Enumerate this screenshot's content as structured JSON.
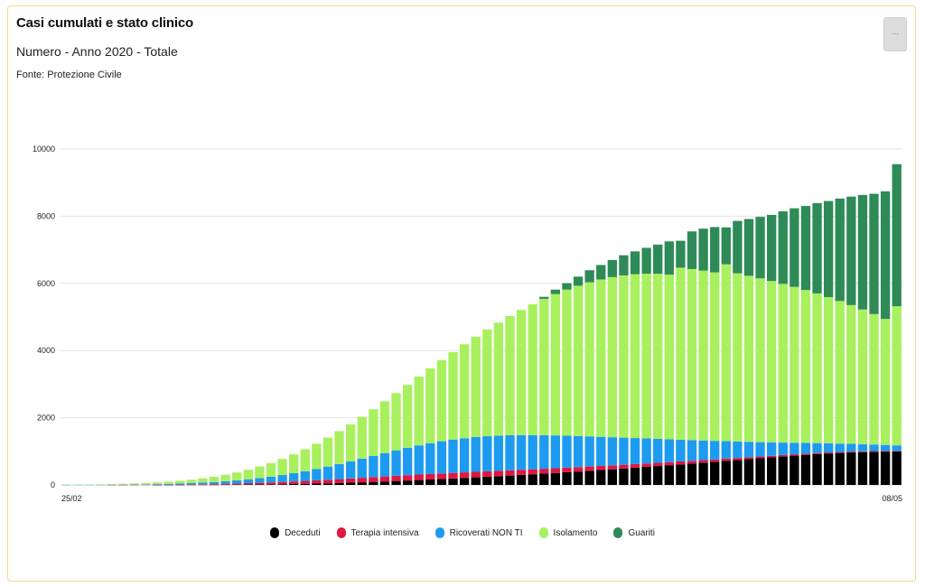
{
  "header": {
    "title": "Casi cumulati e stato clinico",
    "subtitle": "Numero - Anno 2020 - Totale",
    "source": "Fonte: Protezione Civile",
    "menu_label": "..."
  },
  "colors": {
    "Deceduti": "#000000",
    "Terapia intensiva": "#e0173f",
    "Ricoverati NON TI": "#1d9bf0",
    "Isolamento": "#a8f05e",
    "Guariti": "#2e8b57",
    "grid": "#e2e2e2"
  },
  "chart_data": {
    "type": "bar",
    "stacked": true,
    "title": "Casi cumulati e stato clinico",
    "subtitle": "Numero - Anno 2020 - Totale",
    "ylim": [
      0,
      10000
    ],
    "yticks": [
      "0",
      "2000",
      "4000",
      "6000",
      "8000",
      "10000"
    ],
    "x_first_label": "25/02",
    "x_last_label": "08/05",
    "legend_position": "bottom",
    "categories_count": 74,
    "series": [
      {
        "name": "Deceduti",
        "values": [
          0,
          0,
          0,
          0,
          0,
          0,
          0,
          0,
          1,
          2,
          3,
          4,
          5,
          6,
          8,
          10,
          12,
          15,
          18,
          22,
          27,
          33,
          40,
          48,
          57,
          67,
          78,
          90,
          103,
          117,
          131,
          146,
          161,
          177,
          193,
          209,
          226,
          243,
          261,
          279,
          298,
          317,
          337,
          357,
          378,
          399,
          421,
          443,
          466,
          489,
          513,
          537,
          562,
          587,
          612,
          637,
          663,
          689,
          715,
          741,
          767,
          793,
          819,
          845,
          871,
          896,
          916,
          936,
          951,
          966,
          976,
          986,
          991,
          996
        ]
      },
      {
        "name": "Terapia intensiva",
        "values": [
          0,
          0,
          0,
          0,
          1,
          1,
          2,
          3,
          4,
          6,
          9,
          12,
          16,
          21,
          27,
          33,
          41,
          49,
          57,
          66,
          76,
          86,
          96,
          106,
          116,
          125,
          134,
          142,
          149,
          155,
          160,
          163,
          165,
          166,
          166,
          165,
          164,
          162,
          160,
          157,
          153,
          149,
          145,
          141,
          137,
          132,
          127,
          122,
          117,
          112,
          107,
          102,
          97,
          92,
          87,
          82,
          77,
          72,
          67,
          62,
          57,
          52,
          48,
          44,
          40,
          37,
          34,
          31,
          28,
          26,
          24,
          22,
          20,
          18
        ]
      },
      {
        "name": "Ricoverati NON TI",
        "values": [
          2,
          3,
          4,
          5,
          7,
          9,
          12,
          15,
          19,
          24,
          30,
          38,
          48,
          60,
          75,
          93,
          115,
          141,
          171,
          206,
          246,
          290,
          339,
          392,
          449,
          509,
          571,
          634,
          697,
          758,
          816,
          869,
          917,
          958,
          992,
          1018,
          1036,
          1046,
          1048,
          1043,
          1033,
          1018,
          999,
          977,
          952,
          925,
          897,
          868,
          838,
          807,
          776,
          745,
          713,
          681,
          649,
          617,
          585,
          553,
          521,
          490,
          459,
          429,
          400,
          372,
          345,
          320,
          296,
          273,
          252,
          232,
          213,
          196,
          180,
          165
        ]
      },
      {
        "name": "Isolamento",
        "values": [
          8,
          10,
          12,
          15,
          19,
          24,
          31,
          40,
          51,
          65,
          82,
          103,
          128,
          158,
          194,
          236,
          285,
          342,
          407,
          480,
          562,
          653,
          753,
          862,
          980,
          1107,
          1243,
          1388,
          1541,
          1702,
          1871,
          2047,
          2229,
          2415,
          2604,
          2795,
          2986,
          3176,
          3364,
          3548,
          3726,
          3897,
          4059,
          4210,
          4349,
          4475,
          4587,
          4684,
          4765,
          4830,
          4877,
          4905,
          4913,
          4900,
          5120,
          5091,
          5055,
          5013,
          5265,
          5007,
          4944,
          4876,
          4803,
          4724,
          4640,
          4551,
          4455,
          4352,
          4244,
          4130,
          4010,
          3883,
          3750,
          4140
        ]
      },
      {
        "name": "Guariti",
        "values": [
          0,
          0,
          0,
          0,
          0,
          0,
          0,
          0,
          0,
          0,
          0,
          0,
          0,
          0,
          0,
          0,
          0,
          0,
          0,
          0,
          0,
          0,
          0,
          0,
          0,
          0,
          0,
          0,
          0,
          0,
          0,
          0,
          0,
          0,
          0,
          0,
          0,
          0,
          0,
          0,
          0,
          0,
          60,
          130,
          190,
          270,
          360,
          430,
          510,
          600,
          680,
          770,
          870,
          990,
          800,
          1120,
          1250,
          1350,
          1100,
          1560,
          1690,
          1830,
          1970,
          2160,
          2340,
          2500,
          2690,
          2860,
          3050,
          3230,
          3410,
          3580,
          3800,
          4230
        ]
      }
    ]
  }
}
